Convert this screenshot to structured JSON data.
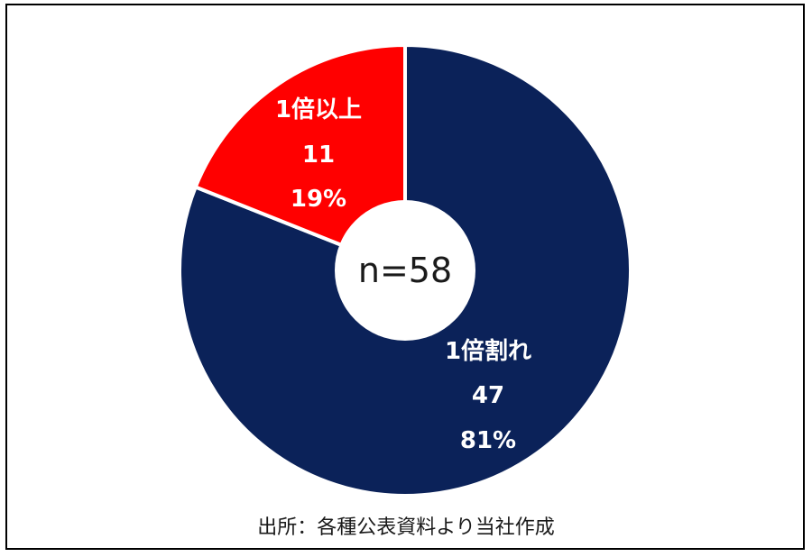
{
  "chart_data": {
    "type": "pie",
    "style": "donut",
    "total_label": "n=58",
    "slices": [
      {
        "label": "1倍割れ",
        "count": 47,
        "count_text": "47",
        "percent": 81,
        "percent_text": "81%",
        "color": "#0b2259"
      },
      {
        "label": "1倍以上",
        "count": 11,
        "count_text": "11",
        "percent": 19,
        "percent_text": "19%",
        "color": "#ff0000"
      }
    ]
  },
  "source_note": "出所：各種公表資料より当社作成"
}
